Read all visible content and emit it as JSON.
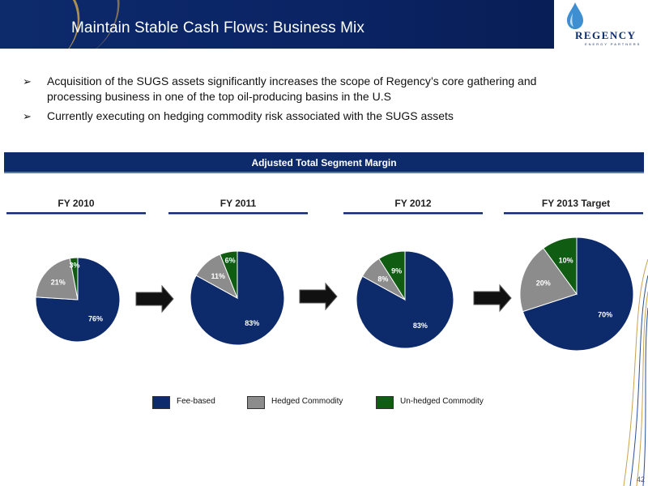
{
  "header": {
    "title": "Maintain Stable Cash Flows: Business Mix",
    "logo_text": "REGENCY",
    "logo_subtext": "ENERGY PARTNERS"
  },
  "bullets": [
    "Acquisition of the SUGS assets significantly increases the scope of Regency’s core gathering and processing business in one of the top oil-producing basins in the U.S",
    "Currently executing on hedging commodity risk associated with the SUGS assets"
  ],
  "bullet_glyph": "➢",
  "banner": "Adjusted Total Segment Margin",
  "colors": {
    "fee_based": "#0d2a6b",
    "hedged": "#8c8c8c",
    "unhedged": "#0f5c12",
    "brand_navy": "#0d2a6b"
  },
  "chart_data": [
    {
      "type": "pie",
      "title": "FY 2010",
      "categories": [
        "Fee-based",
        "Hedged Commodity",
        "Un-hedged Commodity"
      ],
      "values": [
        76,
        21,
        3
      ],
      "labels": [
        "76%",
        "21%",
        "3%"
      ]
    },
    {
      "type": "pie",
      "title": "FY 2011",
      "categories": [
        "Fee-based",
        "Hedged Commodity",
        "Un-hedged Commodity"
      ],
      "values": [
        83,
        11,
        6
      ],
      "labels": [
        "83%",
        "11%",
        "6%"
      ]
    },
    {
      "type": "pie",
      "title": "FY 2012",
      "categories": [
        "Fee-based",
        "Hedged Commodity",
        "Un-hedged Commodity"
      ],
      "values": [
        83,
        8,
        9
      ],
      "labels": [
        "83%",
        "8%",
        "9%"
      ]
    },
    {
      "type": "pie",
      "title": "FY 2013 Target",
      "categories": [
        "Fee-based",
        "Hedged Commodity",
        "Un-hedged Commodity"
      ],
      "values": [
        70,
        20,
        10
      ],
      "labels": [
        "70%",
        "20%",
        "10%"
      ]
    }
  ],
  "legend": [
    {
      "label": "Fee-based",
      "color": "#0d2a6b"
    },
    {
      "label": "Hedged Commodity",
      "color": "#8c8c8c"
    },
    {
      "label": "Un-hedged Commodity",
      "color": "#0f5c12"
    }
  ],
  "page_number": "42"
}
